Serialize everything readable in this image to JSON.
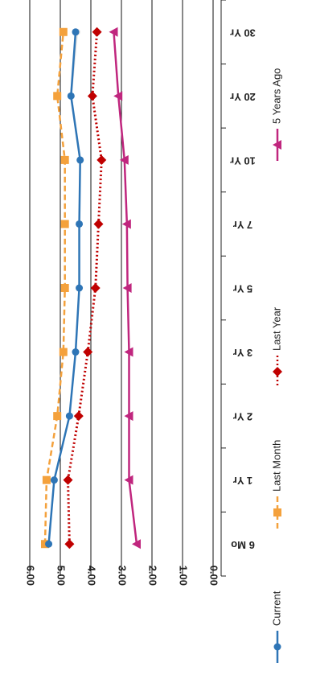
{
  "chart_data": {
    "type": "line",
    "orientation": "rotated-90-clockwise",
    "categories": [
      "6 Mo",
      "1 Yr",
      "2 Yr",
      "3 Yr",
      "5 Yr",
      "7 Yr",
      "10 Yr",
      "20 Yr",
      "30 Yr"
    ],
    "ylim": [
      0,
      6
    ],
    "yticks": [
      "0.00",
      "1.00",
      "2.00",
      "3.00",
      "4.00",
      "5.00",
      "6.00"
    ],
    "grid": true,
    "legend_position": "bottom",
    "series": [
      {
        "name": "Current",
        "color": "#2e75b6",
        "style": "solid",
        "marker": "circle",
        "values": [
          5.38,
          5.2,
          4.7,
          4.5,
          4.38,
          4.38,
          4.35,
          4.65,
          4.5
        ]
      },
      {
        "name": "Last Month",
        "color": "#f4a13c",
        "style": "dashed",
        "marker": "square",
        "values": [
          5.5,
          5.45,
          5.1,
          4.9,
          4.85,
          4.85,
          4.85,
          5.1,
          4.9
        ]
      },
      {
        "name": "Last Year",
        "color": "#c00000",
        "style": "dotted",
        "marker": "diamond",
        "values": [
          4.7,
          4.75,
          4.4,
          4.1,
          3.85,
          3.75,
          3.65,
          3.95,
          3.8
        ]
      },
      {
        "name": "5 Years Ago",
        "color": "#c0267e",
        "style": "solid",
        "marker": "triangle",
        "values": [
          2.5,
          2.75,
          2.75,
          2.75,
          2.8,
          2.82,
          2.9,
          3.1,
          3.25
        ]
      }
    ],
    "extra_series": [
      {
        "color": "#e6e6e6",
        "values": [
          null,
          null,
          null,
          null,
          null,
          null,
          4.35,
          4.65,
          4.45
        ]
      }
    ]
  }
}
